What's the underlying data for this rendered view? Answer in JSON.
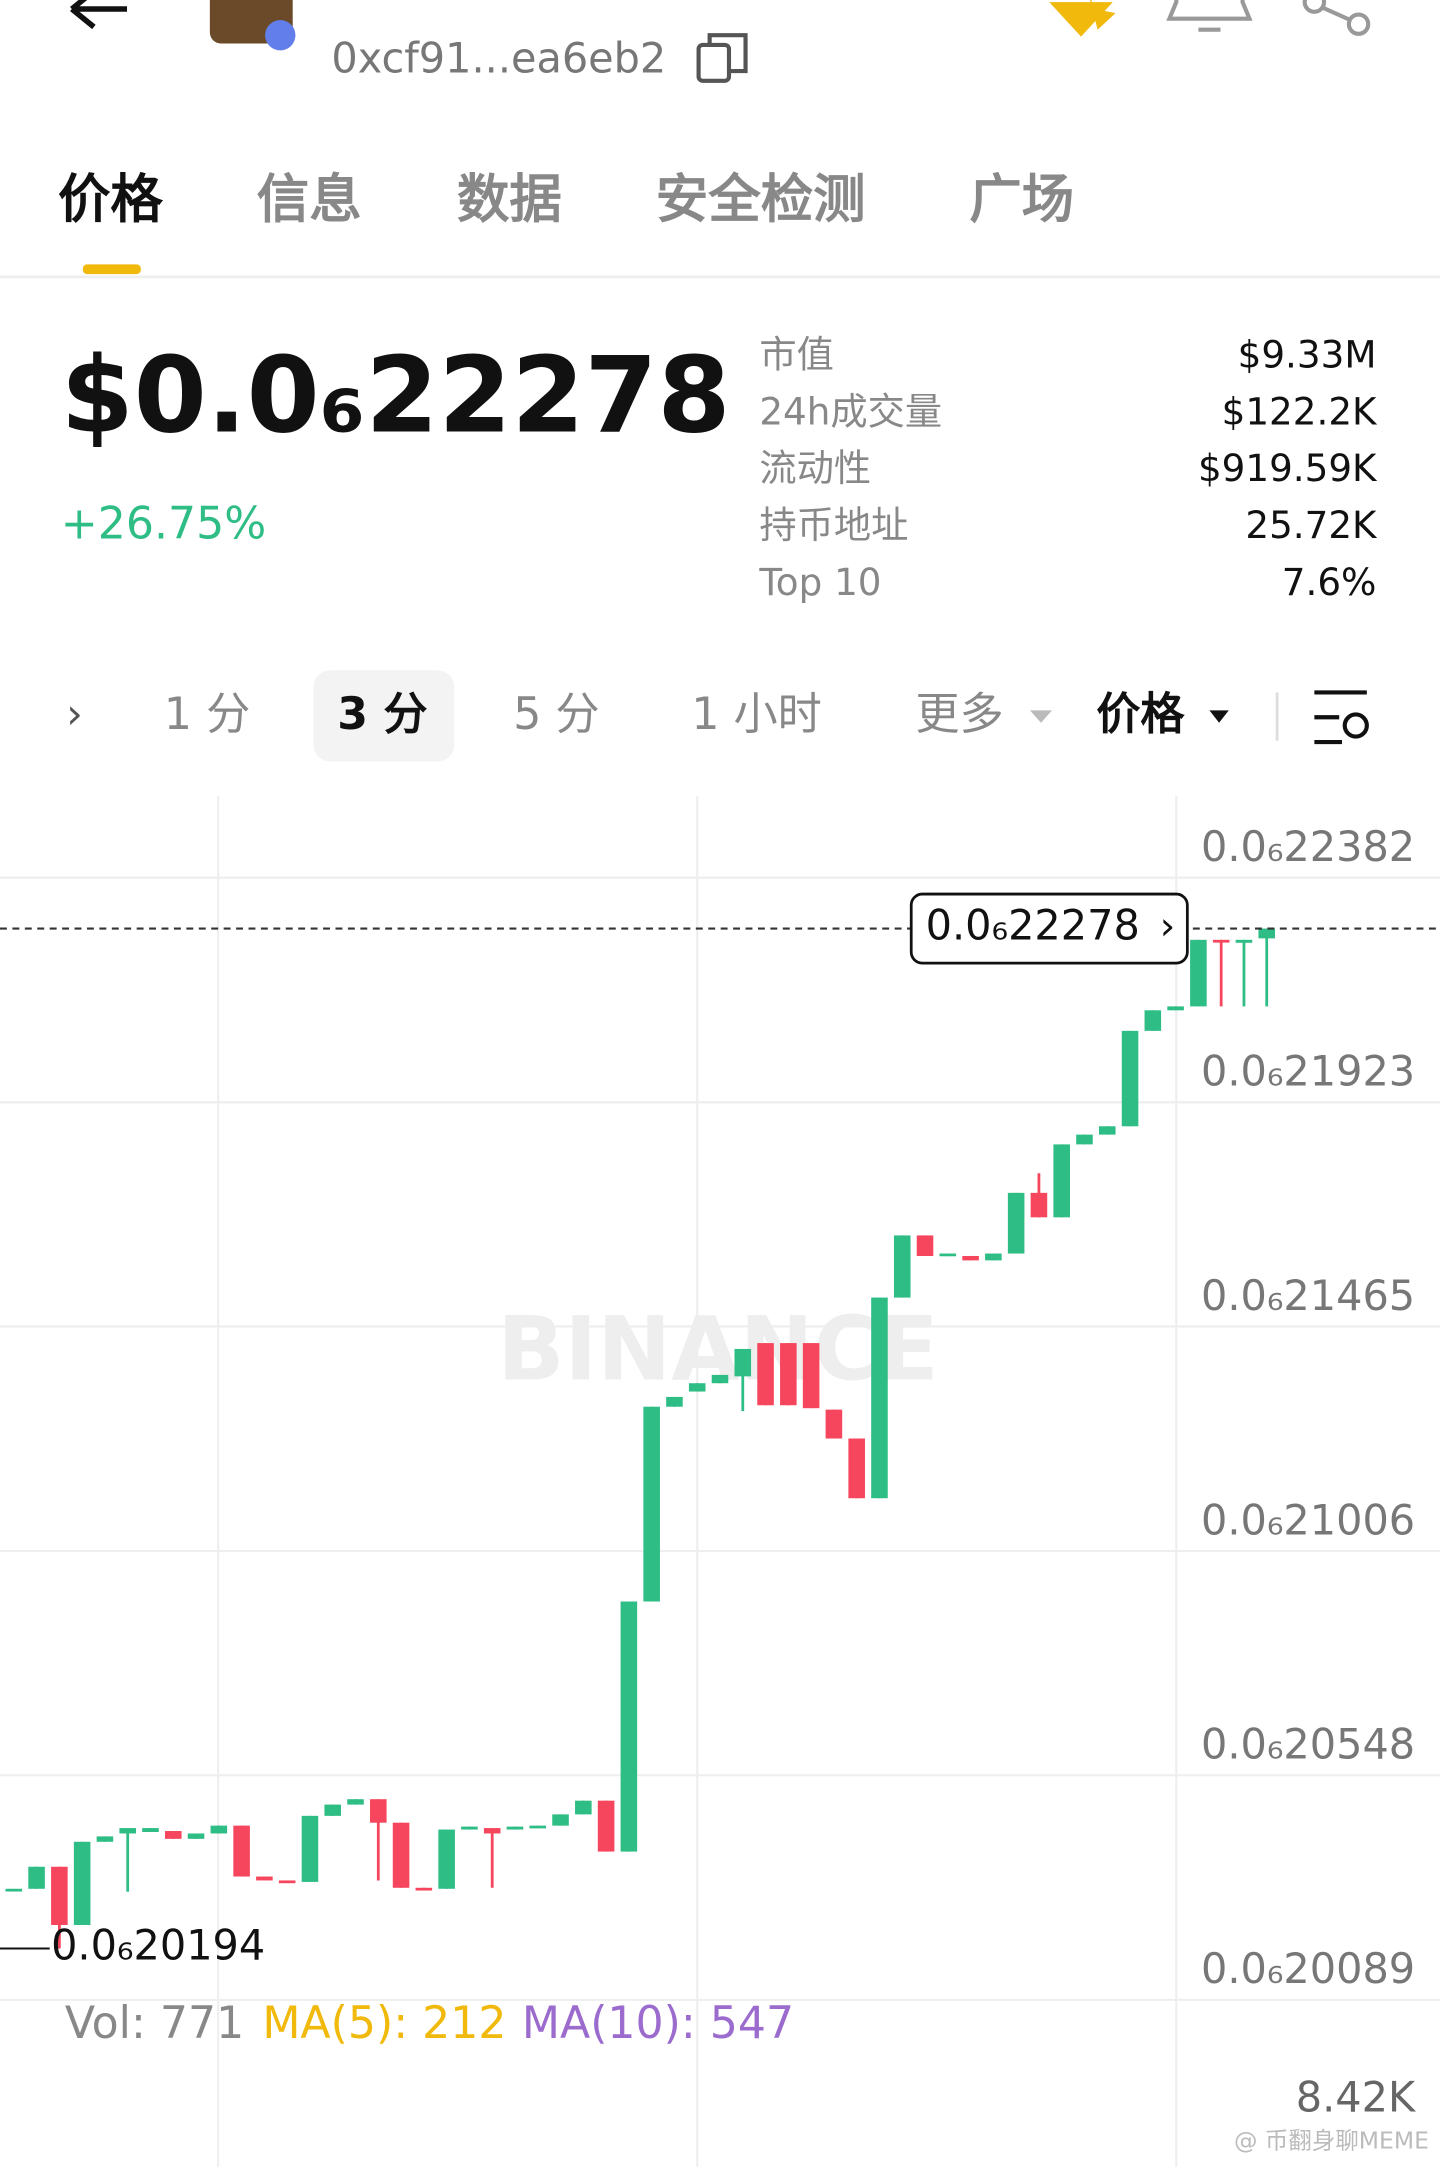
{
  "header": {
    "address": "0xcf91...ea6eb2"
  },
  "tabs": [
    "价格",
    "信息",
    "数据",
    "安全检测",
    "广场"
  ],
  "price": {
    "value": "$0.0₆22278",
    "change": "+26.75%"
  },
  "stats": [
    {
      "label": "市值",
      "value": "$9.33M"
    },
    {
      "label": "24h成交量",
      "value": "$122.2K"
    },
    {
      "label": "流动性",
      "value": "$919.59K"
    },
    {
      "label": "持币地址",
      "value": "25.72K"
    },
    {
      "label": "Top 10",
      "value": "7.6%"
    }
  ],
  "intervals": [
    "1 分",
    "3 分",
    "5 分",
    "1 小时",
    "更多",
    "价格"
  ],
  "chart_data": {
    "type": "candlestick",
    "up_color": "#2ebd85",
    "down_color": "#f6465d",
    "open": [
      2.0316e-07,
      2.0316e-07,
      2.0361e-07,
      2.0242e-07,
      2.0412e-07,
      2.0429e-07,
      2.0432e-07,
      2.0434e-07,
      2.0418e-07,
      2.0429e-07,
      2.0445e-07,
      2.0341e-07,
      2.0333e-07,
      2.033e-07,
      2.0465e-07,
      2.0488e-07,
      2.0499e-07,
      2.0451e-07,
      2.0318e-07,
      2.0316e-07,
      2.0437e-07,
      2.044e-07,
      2.0437e-07,
      2.044e-07,
      2.0445e-07,
      2.0468e-07,
      2.0496e-07,
      2.0392e-07,
      2.0903e-07,
      2.1301e-07,
      2.1332e-07,
      2.1349e-07,
      2.1363e-07,
      2.1431e-07,
      2.1431e-07,
      2.1431e-07,
      2.1295e-07,
      2.1236e-07,
      2.1114e-07,
      2.1524e-07,
      2.1651e-07,
      2.1609e-07,
      2.1609e-07,
      2.16e-07,
      2.1614e-07,
      2.1738e-07,
      2.1688e-07,
      2.1837e-07,
      2.1857e-07,
      2.1874e-07,
      2.2069e-07,
      2.2111e-07,
      2.2119e-07,
      2.2255e-07,
      2.2249e-07,
      2.2258e-07
    ],
    "high": [
      2.0316e-07,
      2.0361e-07,
      2.0361e-07,
      2.0412e-07,
      2.0423e-07,
      2.044e-07,
      2.044e-07,
      2.0434e-07,
      2.0429e-07,
      2.0445e-07,
      2.0445e-07,
      2.0341e-07,
      2.0333e-07,
      2.0465e-07,
      2.0488e-07,
      2.0499e-07,
      2.0499e-07,
      2.0451e-07,
      2.0318e-07,
      2.0437e-07,
      2.0443e-07,
      2.044e-07,
      2.0443e-07,
      2.0445e-07,
      2.0468e-07,
      2.0496e-07,
      2.0496e-07,
      2.0903e-07,
      2.1301e-07,
      2.1321e-07,
      2.1349e-07,
      2.1366e-07,
      2.1419e-07,
      2.1431e-07,
      2.1431e-07,
      2.1431e-07,
      2.1295e-07,
      2.1236e-07,
      2.1524e-07,
      2.1651e-07,
      2.1651e-07,
      2.1614e-07,
      2.1609e-07,
      2.1614e-07,
      2.1738e-07,
      2.1778e-07,
      2.1837e-07,
      2.1857e-07,
      2.1874e-07,
      2.2069e-07,
      2.2111e-07,
      2.2119e-07,
      2.2255e-07,
      2.2255e-07,
      2.2255e-07,
      2.2278e-07
    ],
    "low": [
      2.0316e-07,
      2.0316e-07,
      2.0194e-07,
      2.0242e-07,
      2.0412e-07,
      2.031e-07,
      2.0432e-07,
      2.0418e-07,
      2.0418e-07,
      2.0429e-07,
      2.0341e-07,
      2.0333e-07,
      2.033e-07,
      2.033e-07,
      2.0465e-07,
      2.0488e-07,
      2.0333e-07,
      2.0318e-07,
      2.0316e-07,
      2.0316e-07,
      2.0437e-07,
      2.0318e-07,
      2.0437e-07,
      2.044e-07,
      2.0445e-07,
      2.0468e-07,
      2.0392e-07,
      2.0392e-07,
      2.0903e-07,
      2.1301e-07,
      2.1332e-07,
      2.1349e-07,
      2.1292e-07,
      2.1304e-07,
      2.1304e-07,
      2.1298e-07,
      2.1236e-07,
      2.1114e-07,
      2.1114e-07,
      2.1524e-07,
      2.1609e-07,
      2.1609e-07,
      2.16e-07,
      2.16e-07,
      2.1614e-07,
      2.1688e-07,
      2.1688e-07,
      2.1837e-07,
      2.1857e-07,
      2.1874e-07,
      2.2069e-07,
      2.2111e-07,
      2.2119e-07,
      2.2119e-07,
      2.2119e-07,
      2.2119e-07
    ],
    "close": [
      2.0316e-07,
      2.0361e-07,
      2.0242e-07,
      2.0412e-07,
      2.0423e-07,
      2.044e-07,
      2.044e-07,
      2.0418e-07,
      2.0429e-07,
      2.0445e-07,
      2.0341e-07,
      2.0333e-07,
      2.033e-07,
      2.0465e-07,
      2.0488e-07,
      2.0499e-07,
      2.0451e-07,
      2.0318e-07,
      2.0316e-07,
      2.0437e-07,
      2.0443e-07,
      2.0429e-07,
      2.0443e-07,
      2.0445e-07,
      2.0468e-07,
      2.0496e-07,
      2.0392e-07,
      2.0903e-07,
      2.1301e-07,
      2.1321e-07,
      2.1349e-07,
      2.1366e-07,
      2.1419e-07,
      2.1304e-07,
      2.1304e-07,
      2.1298e-07,
      2.1236e-07,
      2.1114e-07,
      2.1524e-07,
      2.1651e-07,
      2.1609e-07,
      2.1614e-07,
      2.16e-07,
      2.1614e-07,
      2.1738e-07,
      2.1688e-07,
      2.1837e-07,
      2.1857e-07,
      2.1874e-07,
      2.2069e-07,
      2.2111e-07,
      2.2119e-07,
      2.2255e-07,
      2.2252e-07,
      2.2255e-07,
      2.2278e-07
    ],
    "ylim": [
      2.0089e-07,
      2.2549e-07
    ],
    "yticks": [
      {
        "value": 2.2382e-07,
        "label": "0.0₆22382"
      },
      {
        "value": 2.1923e-07,
        "label": "0.0₆21923"
      },
      {
        "value": 2.1465e-07,
        "label": "0.0₆21465"
      },
      {
        "value": 2.1006e-07,
        "label": "0.0₆21006"
      },
      {
        "value": 2.0548e-07,
        "label": "0.0₆20548"
      },
      {
        "value": 2.0089e-07,
        "label": "0.0₆20089"
      }
    ],
    "grid": true,
    "last_price": {
      "value": 2.2278e-07,
      "label": "0.0₆22278"
    },
    "low_marker": {
      "value": 2.0194e-07,
      "label": "0.0₆20194"
    }
  },
  "indicators": {
    "vol": "Vol: 771",
    "ma5": "MA(5): 212",
    "ma10": "MA(10): 547",
    "vol_max": "8.42K"
  },
  "watermark": "BINANCE",
  "credit": "@ 币翻身聊MEME"
}
